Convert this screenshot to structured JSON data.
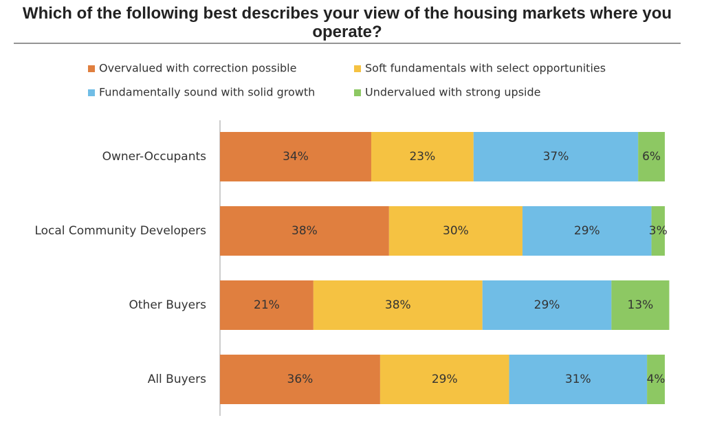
{
  "chart_data": {
    "type": "stacked-bar-horizontal",
    "title": "Which of the following best describes your view of the housing markets where you operate?",
    "categories": [
      "Owner-Occupants",
      "Local Community Developers",
      "Other Buyers",
      "All Buyers"
    ],
    "series": [
      {
        "name": "Overvalued with correction possible",
        "color": "#e07f3f",
        "values": [
          34,
          38,
          21,
          36
        ],
        "value_labels": [
          "34%",
          "38%",
          "21%",
          "36%"
        ]
      },
      {
        "name": "Soft fundamentals with select opportunities",
        "color": "#f5c242",
        "values": [
          23,
          30,
          38,
          29
        ],
        "value_labels": [
          "23%",
          "30%",
          "38%",
          "29%"
        ]
      },
      {
        "name": "Fundamentally sound with solid growth",
        "color": "#70bde6",
        "values": [
          37,
          29,
          29,
          31
        ],
        "value_labels": [
          "37%",
          "29%",
          "29%",
          "31%"
        ]
      },
      {
        "name": "Undervalued with strong upside",
        "color": "#8dc863",
        "values": [
          6,
          3,
          13,
          4
        ],
        "value_labels": [
          "6%",
          "3%",
          "13%",
          "4%"
        ]
      }
    ]
  }
}
